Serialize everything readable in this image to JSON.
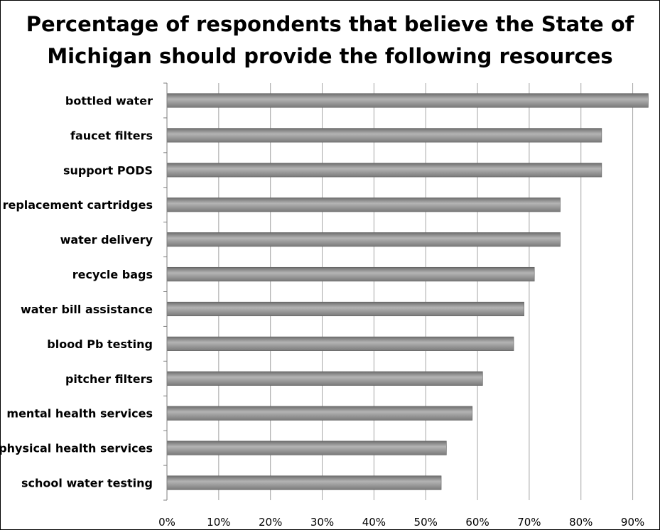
{
  "chart_data": {
    "type": "bar",
    "orientation": "horizontal",
    "title": "Percentage of respondents that believe the State of\nMichigan should provide the following resources",
    "xlabel": "",
    "ylabel": "",
    "categories": [
      "bottled water",
      "faucet filters",
      "support PODS",
      "replacement cartridges",
      "water delivery",
      "recycle bags",
      "water bill assistance",
      "blood Pb testing",
      "pitcher filters",
      "mental health services",
      "physical health services",
      "school water testing"
    ],
    "values": [
      93,
      84,
      84,
      76,
      76,
      71,
      69,
      67,
      61,
      59,
      54,
      53
    ],
    "xlim": [
      0,
      95
    ],
    "ticks": [
      0,
      10,
      20,
      30,
      40,
      50,
      60,
      70,
      80,
      90
    ],
    "tick_labels": [
      "0%",
      "10%",
      "20%",
      "30%",
      "40%",
      "50%",
      "60%",
      "70%",
      "80%",
      "90%"
    ],
    "grid": true,
    "legend": "none",
    "colors": {
      "bar": "#8c8c8c",
      "bar_highlight": "#b4b4b4",
      "grid": "#a6a6a6",
      "axis": "#7f7f7f"
    }
  }
}
